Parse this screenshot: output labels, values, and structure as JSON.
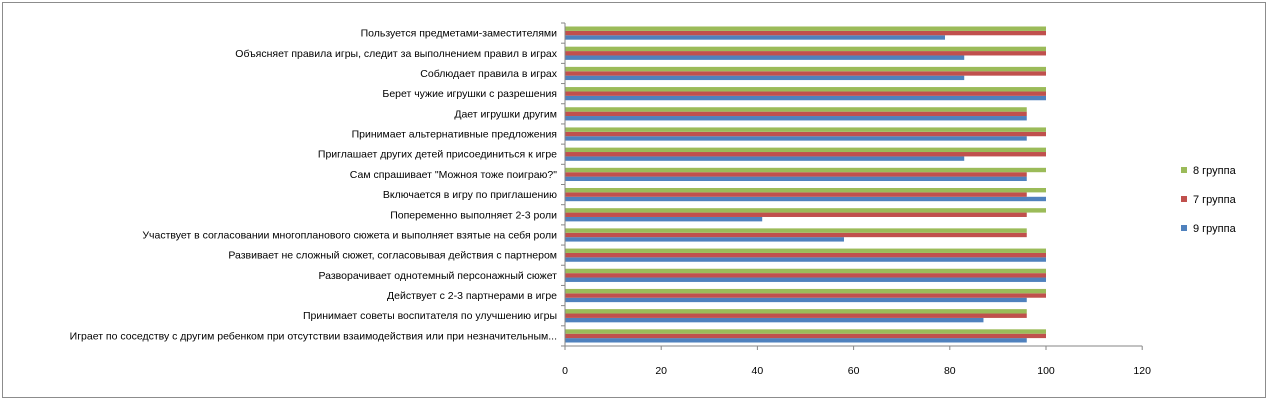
{
  "chart_data": {
    "type": "bar",
    "orientation": "horizontal",
    "categories": [
      "Играет по соседству с другим ребенком при отсутствии взаимодействия или при незначительным...",
      "Принимает советы воспитателя по улучшению игры",
      "Действует с 2-3 партнерами в игре",
      "Разворачивает однотемный персонажный сюжет",
      "Развивает не сложный сюжет, согласовывая действия с партнером",
      "Участвует в согласовании многопланового сюжета и выполняет взятые на себя роли",
      "Попеременно выполняет 2-3 роли",
      "Включается в игру по приглашению",
      "Сам спрашивает \"Можноя тоже поиграю?\"",
      "Приглашает других детей присоединиться к игре",
      "Принимает альтернативные предложения",
      "Дает игрушки другим",
      "Берет чужие игрушки с разрешения",
      "Соблюдает правила в играх",
      "Объясняет правила игры, следит за выполнением правил в играх",
      "Пользуется предметами-заместителями"
    ],
    "series": [
      {
        "name": "9 группа",
        "color": "#4f81bd",
        "values": [
          96,
          87,
          96,
          100,
          100,
          58,
          41,
          100,
          96,
          83,
          96,
          96,
          100,
          83,
          83,
          79
        ]
      },
      {
        "name": "7 группа",
        "color": "#c0504d",
        "values": [
          100,
          96,
          100,
          100,
          100,
          96,
          96,
          96,
          96,
          100,
          100,
          96,
          100,
          100,
          100,
          100
        ]
      },
      {
        "name": "8 группа",
        "color": "#9bbb59",
        "values": [
          100,
          96,
          100,
          100,
          100,
          96,
          100,
          100,
          100,
          100,
          100,
          96,
          100,
          100,
          100,
          100
        ]
      }
    ],
    "xlim": [
      0,
      120
    ],
    "xticks": [
      "0",
      "20",
      "40",
      "60",
      "80",
      "100",
      "120"
    ],
    "grid": false,
    "legend_position": "right",
    "legend_order": [
      "8 группа",
      "7 группа",
      "9 группа"
    ]
  }
}
